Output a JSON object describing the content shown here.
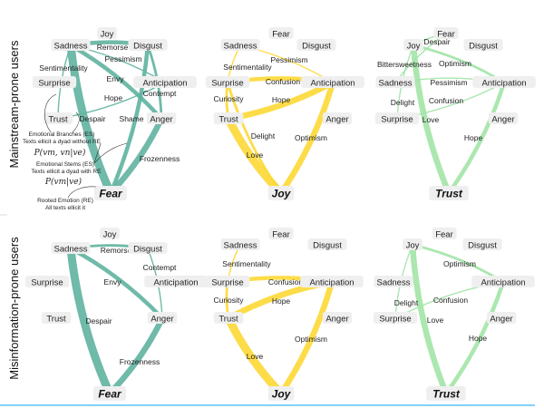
{
  "row_labels": [
    "Mainstream-prone users",
    "Misinformation-prone users"
  ],
  "colors": {
    "Fear": "#5fb3a0",
    "Joy": "#fdd835",
    "Trust": "#a2e4a6",
    "separator": "#5bc0f5"
  },
  "annotations": {
    "branches_title": "Emotional Branches (ES)",
    "branches_desc": "Texts ellicit a dyad without RE",
    "branches_formula": "P(vm, vn|ve)",
    "stems_title": "Emotional Stems (ES)",
    "stems_desc": "Texts ellicit a dyad with RE",
    "stems_formula": "P(vm|ve)",
    "root_title": "Rooted Emotion (RE)",
    "root_desc": "All texts ellicit it"
  },
  "panels": [
    {
      "root": "Fear",
      "row": 0,
      "nodes": [
        "Joy",
        "Sadness",
        "Disgust",
        "Surprise",
        "Anticipation",
        "Trust",
        "Anger"
      ],
      "edges": [
        {
          "from": "Sadness",
          "to": "Disgust",
          "label": "Remorse",
          "weight": 3
        },
        {
          "from": "Sadness",
          "to": "Anticipation",
          "label": "Pessimism",
          "weight": 1
        },
        {
          "from": "Trust",
          "to": "Sadness",
          "label": "Sentimentality",
          "weight": 1
        },
        {
          "from": "Sadness",
          "to": "Anger",
          "label": "Envy",
          "weight": 3
        },
        {
          "from": "Disgust",
          "to": "Anger",
          "label": "Contempt",
          "weight": 2
        },
        {
          "from": "Trust",
          "to": "Anticipation",
          "label": "Hope",
          "weight": 1
        },
        {
          "from": "Sadness",
          "to": "Fear",
          "label": "Despair",
          "weight": 5
        },
        {
          "from": "Disgust",
          "to": "Fear",
          "label": "Shame",
          "weight": 3
        },
        {
          "from": "Anger",
          "to": "Fear",
          "label": "Frozenness",
          "weight": 4
        }
      ]
    },
    {
      "root": "Joy",
      "row": 0,
      "nodes": [
        "Fear",
        "Sadness",
        "Disgust",
        "Surprise",
        "Anticipation",
        "Trust",
        "Anger"
      ],
      "edges": [
        {
          "from": "Sadness",
          "to": "Anticipation",
          "label": "Pessimism",
          "weight": 1
        },
        {
          "from": "Sadness",
          "to": "Surprise",
          "label": "Sentimentality",
          "weight": 1
        },
        {
          "from": "Surprise",
          "to": "Anticipation",
          "label": "Confusion",
          "weight": 3
        },
        {
          "from": "Surprise",
          "to": "Trust",
          "label": "Curiosity",
          "weight": 2
        },
        {
          "from": "Trust",
          "to": "Anticipation",
          "label": "Hope",
          "weight": 4
        },
        {
          "from": "Surprise",
          "to": "Joy",
          "label": "Delight",
          "weight": 2
        },
        {
          "from": "Anticipation",
          "to": "Joy",
          "label": "Optimism",
          "weight": 4
        },
        {
          "from": "Trust",
          "to": "Joy",
          "label": "Love",
          "weight": 5
        }
      ]
    },
    {
      "root": "Trust",
      "row": 0,
      "nodes": [
        "Fear",
        "Joy",
        "Disgust",
        "Sadness",
        "Anticipation",
        "Surprise",
        "Anger"
      ],
      "edges": [
        {
          "from": "Joy",
          "to": "Fear",
          "label": "Despair",
          "weight": 1
        },
        {
          "from": "Fear",
          "to": "Sadness",
          "label": "Bittersweetness",
          "weight": 1
        },
        {
          "from": "Joy",
          "to": "Anticipation",
          "label": "Optimism",
          "weight": 2
        },
        {
          "from": "Sadness",
          "to": "Anticipation",
          "label": "Pessimism",
          "weight": 1
        },
        {
          "from": "Surprise",
          "to": "Anticipation",
          "label": "Confusion",
          "weight": 1
        },
        {
          "from": "Joy",
          "to": "Surprise",
          "label": "Delight",
          "weight": 1
        },
        {
          "from": "Joy",
          "to": "Trust",
          "label": "Love",
          "weight": 4
        },
        {
          "from": "Anticipation",
          "to": "Trust",
          "label": "Hope",
          "weight": 3
        }
      ]
    },
    {
      "root": "Fear",
      "row": 1,
      "nodes": [
        "Joy",
        "Sadness",
        "Disgust",
        "Surprise",
        "Anticipation",
        "Trust",
        "Anger"
      ],
      "edges": [
        {
          "from": "Sadness",
          "to": "Disgust",
          "label": "Remorse",
          "weight": 2
        },
        {
          "from": "Disgust",
          "to": "Anger",
          "label": "Contempt",
          "weight": 1
        },
        {
          "from": "Sadness",
          "to": "Anger",
          "label": "Envy",
          "weight": 3
        },
        {
          "from": "Sadness",
          "to": "Fear",
          "label": "Despair",
          "weight": 5
        },
        {
          "from": "Anger",
          "to": "Fear",
          "label": "Frozenness",
          "weight": 4
        }
      ]
    },
    {
      "root": "Joy",
      "row": 1,
      "nodes": [
        "Fear",
        "Sadness",
        "Disgust",
        "Surprise",
        "Anticipation",
        "Trust",
        "Anger"
      ],
      "edges": [
        {
          "from": "Sadness",
          "to": "Surprise",
          "label": "Sentimentality",
          "weight": 1
        },
        {
          "from": "Surprise",
          "to": "Anticipation",
          "label": "Confusion",
          "weight": 3
        },
        {
          "from": "Surprise",
          "to": "Trust",
          "label": "Curiosity",
          "weight": 2
        },
        {
          "from": "Trust",
          "to": "Anticipation",
          "label": "Hope",
          "weight": 4
        },
        {
          "from": "Anticipation",
          "to": "Joy",
          "label": "Optimism",
          "weight": 4
        },
        {
          "from": "Trust",
          "to": "Joy",
          "label": "Love",
          "weight": 5
        }
      ]
    },
    {
      "root": "Trust",
      "row": 1,
      "nodes": [
        "Fear",
        "Joy",
        "Disgust",
        "Sadness",
        "Anticipation",
        "Surprise",
        "Anger"
      ],
      "edges": [
        {
          "from": "Joy",
          "to": "Anticipation",
          "label": "Optimism",
          "weight": 2
        },
        {
          "from": "Joy",
          "to": "Surprise",
          "label": "Delight",
          "weight": 1
        },
        {
          "from": "Surprise",
          "to": "Anticipation",
          "label": "Confusion",
          "weight": 1
        },
        {
          "from": "Joy",
          "to": "Trust",
          "label": "Love",
          "weight": 4
        },
        {
          "from": "Anticipation",
          "to": "Trust",
          "label": "Hope",
          "weight": 3
        }
      ]
    }
  ]
}
